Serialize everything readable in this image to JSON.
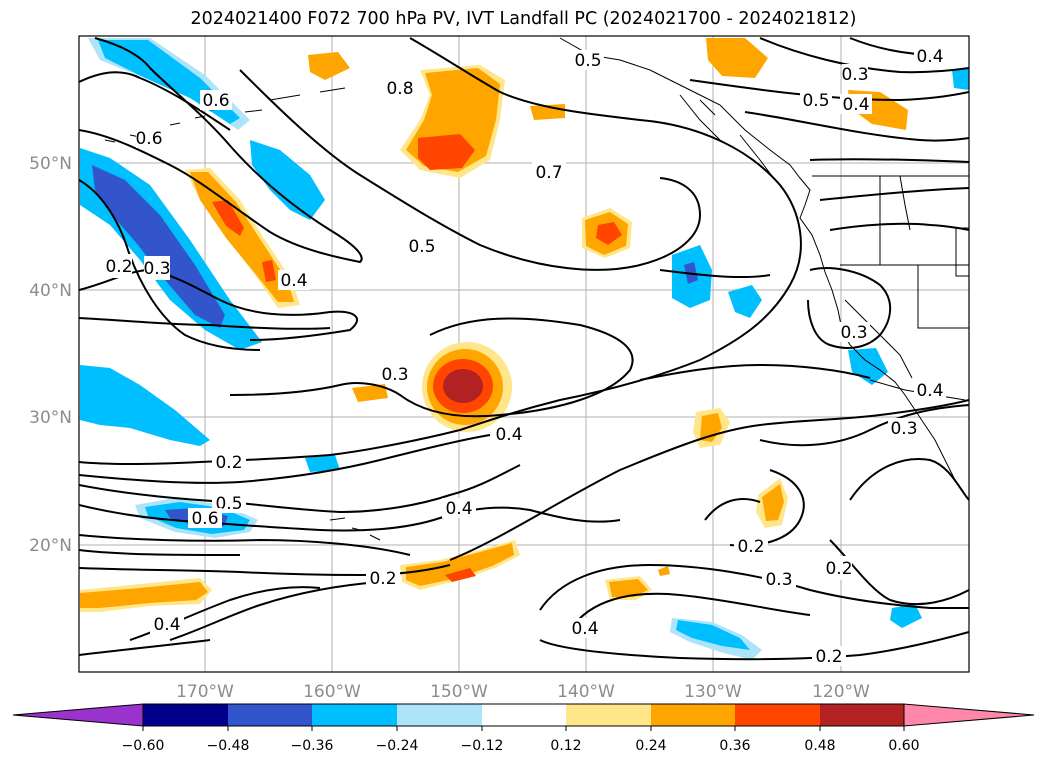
{
  "title": "2024021400 F072 700 hPa PV, IVT Landfall PC (2024021700 - 2024021812)",
  "lat_labels": [
    "50°N",
    "40°N",
    "30°N",
    "20°N"
  ],
  "lon_labels": [
    "170°W",
    "160°W",
    "150°W",
    "140°W",
    "130°W",
    "120°W"
  ],
  "colorbar": {
    "colors": [
      "#9933cc",
      "#00008b",
      "#3355cc",
      "#00bfff",
      "#aee4fa",
      "#ffffff",
      "#ffe68a",
      "#ffa500",
      "#ff4500",
      "#b22222",
      "#ff88aa"
    ],
    "ticks": [
      "−0.60",
      "−0.48",
      "−0.36",
      "−0.24",
      "−0.12",
      "0.12",
      "0.24",
      "0.36",
      "0.48",
      "0.60"
    ]
  },
  "contour_labels": [
    "0.5",
    "0.4",
    "0.8",
    "0.3",
    "0.5",
    "0.4",
    "0.6",
    "0.6",
    "0.7",
    "0.5",
    "0.2",
    "0.3",
    "0.4",
    "0.3",
    "0.4",
    "0.3",
    "0.4",
    "0.3",
    "0.2",
    "0.5",
    "0.6",
    "0.4",
    "0.2",
    "0.2",
    "0.3",
    "0.2",
    "0.2",
    "0.4",
    "0.4"
  ]
}
